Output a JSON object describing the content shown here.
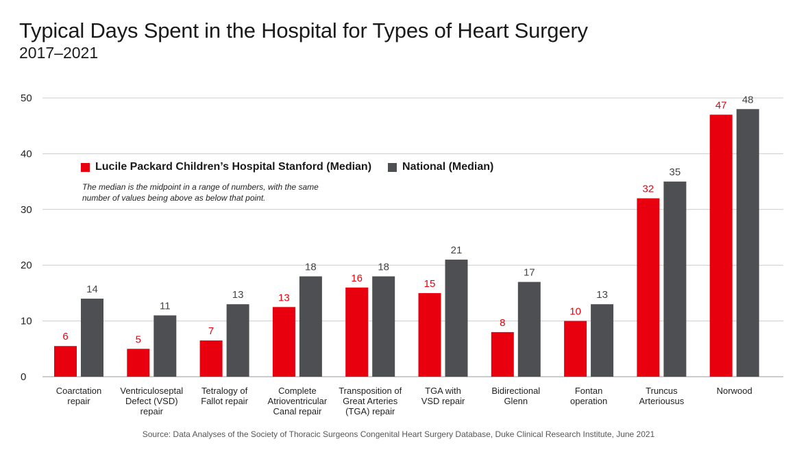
{
  "title": "Typical Days Spent in the Hospital for Types of Heart Surgery",
  "subtitle": "2017–2021",
  "legend": {
    "series_a": "Lucile Packard Children’s Hospital Stanford (Median)",
    "series_b": "National (Median)"
  },
  "note": "The median is the midpoint in a range of numbers, with the same number of values being above as below that point.",
  "source": "Source: Data Analyses of the Society of Thoracic Surgeons Congenital Heart Surgery Database, Duke Clinical Research Institute, June 2021",
  "colors": {
    "stanford": "#e8000f",
    "national": "#4d4f53",
    "grid": "#cccccc"
  },
  "chart_data": {
    "type": "bar",
    "categories": [
      [
        "Coarctation",
        "repair"
      ],
      [
        "Ventriculoseptal",
        "Defect (VSD)",
        "repair"
      ],
      [
        "Tetralogy of",
        "Fallot repair"
      ],
      [
        "Complete",
        "Atrioventricular",
        "Canal repair"
      ],
      [
        "Transposition of",
        "Great Arteries",
        "(TGA) repair"
      ],
      [
        "TGA with",
        "VSD repair"
      ],
      [
        "Bidirectional",
        "Glenn"
      ],
      [
        "Fontan",
        "operation"
      ],
      [
        "Truncus",
        "Arteriousus"
      ],
      [
        "Norwood"
      ]
    ],
    "series": [
      {
        "name": "Lucile Packard Children’s Hospital Stanford (Median)",
        "key": "stanford",
        "values": [
          6,
          5,
          7,
          13,
          16,
          15,
          8,
          10,
          32,
          47
        ],
        "heights": [
          5.5,
          5,
          6.5,
          12.5,
          16,
          15,
          8,
          10,
          32,
          47
        ]
      },
      {
        "name": "National (Median)",
        "key": "national",
        "values": [
          14,
          11,
          13,
          18,
          18,
          21,
          17,
          13,
          35,
          48
        ],
        "heights": [
          14,
          11,
          13,
          18,
          18,
          21,
          17,
          13,
          35,
          48
        ]
      }
    ],
    "ylim": [
      0,
      50
    ],
    "yticks": [
      0,
      10,
      20,
      30,
      40,
      50
    ],
    "grid": true,
    "legend_position": "upper-left"
  }
}
